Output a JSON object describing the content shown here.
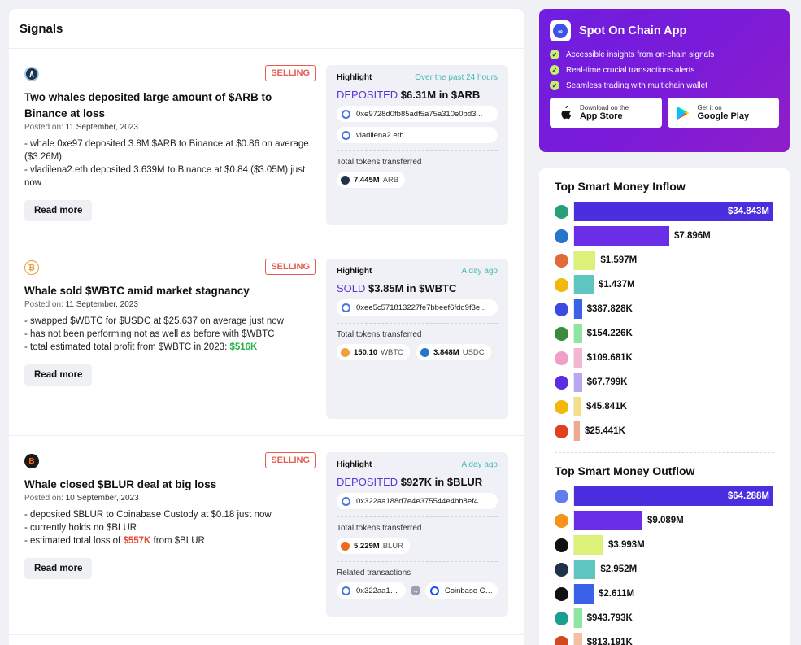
{
  "signals": {
    "header": "Signals",
    "items": [
      {
        "icon": "arb-icon",
        "badge": "SELLING",
        "title": "Two whales deposited large amount of $ARB to Binance at loss",
        "posted_label": "Posted on:",
        "posted_date": "11 September, 2023",
        "desc": [
          "- whale 0xe97 deposited 3.8M $ARB to Binance at $0.86 on average ($3.26M)",
          "- vladilena2.eth deposited 3.639M to Binance at $0.84 ($3.05M) just now"
        ],
        "read_more": "Read more",
        "highlight": {
          "label": "Highlight",
          "time": "Over the past 24 hours",
          "verb": "DEPOSITED",
          "amount": "$6.31M in $ARB",
          "chips": [
            "0xe9728d0fb85adf5a75a310e0bd3...",
            "vladilena2.eth"
          ],
          "tokens_label": "Total tokens transferred",
          "tokens": [
            {
              "amount": "7.445M",
              "symbol": "ARB"
            }
          ]
        }
      },
      {
        "icon": "btc-icon",
        "badge": "SELLING",
        "title": "Whale sold $WBTC amid market stagnancy",
        "posted_label": "Posted on:",
        "posted_date": "11 September, 2023",
        "desc": [
          "- swapped $WBTC for $USDC at $25,637 on average just now",
          "- has not been performing not as well as before with $WBTC"
        ],
        "desc_last_prefix": "- total estimated total profit from $WBTC in 2023: ",
        "desc_last_value": "$516K",
        "read_more": "Read more",
        "highlight": {
          "label": "Highlight",
          "time": "A day ago",
          "verb": "SOLD",
          "amount": "$3.85M in $WBTC",
          "chips": [
            "0xee5c571813227fe7bbeef6fdd9f3e..."
          ],
          "tokens_label": "Total tokens transferred",
          "tokens": [
            {
              "amount": "150.10",
              "symbol": "WBTC"
            },
            {
              "amount": "3.848M",
              "symbol": "USDC"
            }
          ]
        }
      },
      {
        "icon": "blur-icon",
        "badge": "SELLING",
        "title": "Whale closed $BLUR deal at big loss",
        "posted_label": "Posted on:",
        "posted_date": "10 September, 2023",
        "desc": [
          "- deposited $BLUR to Coinabase Custody at $0.18 just now",
          "- currently holds no $BLUR"
        ],
        "desc_last_prefix": "- estimated total loss of ",
        "desc_last_value": "$557K",
        "desc_last_suffix": " from $BLUR",
        "read_more": "Read more",
        "highlight": {
          "label": "Highlight",
          "time": "A day ago",
          "verb": "DEPOSITED",
          "amount": "$927K in $BLUR",
          "chips": [
            "0x322aa188d7e4e375544e4bb8ef4..."
          ],
          "tokens_label": "Total tokens transferred",
          "tokens": [
            {
              "amount": "5.229M",
              "symbol": "BLUR"
            }
          ],
          "related_label": "Related transactions",
          "related_from": "0x322aa188...",
          "related_to": "Coinbase Cu..."
        }
      }
    ]
  },
  "app": {
    "title": "Spot On Chain App",
    "features": [
      "Accessible insights from on-chain signals",
      "Real-time crucial transactions alerts",
      "Seamless trading with multichain wallet"
    ],
    "app_store_small": "Download on the",
    "app_store_big": "App Store",
    "google_small": "Get it on",
    "google_big": "Google Play"
  },
  "inflow": {
    "title": "Top Smart Money Inflow",
    "rows": [
      {
        "icon": "usdt-icon",
        "color": "#26a17b",
        "bar_color": "#4a2ee0",
        "value": 34.843,
        "label": "$34.843M"
      },
      {
        "icon": "usdc-icon",
        "color": "#2775ca",
        "bar_color": "#6a2ee6",
        "value": 7.896,
        "label": "$7.896M"
      },
      {
        "icon": "rainbow-icon",
        "color": "#e06a3a",
        "bar_color": "#dcf07a",
        "value": 1.597,
        "label": "$1.597M"
      },
      {
        "icon": "bnb-icon",
        "color": "#f0b90b",
        "bar_color": "#5ec5c0",
        "value": 1.437,
        "label": "$1.437M"
      },
      {
        "icon": "lido-icon",
        "color": "#3a4ce0",
        "bar_color": "#3a62e8",
        "value": 0.387828,
        "label": "$387.828K"
      },
      {
        "icon": "pepe-icon",
        "color": "#3c8a3c",
        "bar_color": "#8fe6a0",
        "value": 0.154226,
        "label": "$154.226K"
      },
      {
        "icon": "unicorn-icon",
        "color": "#f0a0c8",
        "bar_color": "#f5b7d0",
        "value": 0.109681,
        "label": "$109.681K"
      },
      {
        "icon": "poly-icon",
        "color": "#5a2ee0",
        "bar_color": "#b9a8f0",
        "value": 0.067799,
        "label": "$67.799K"
      },
      {
        "icon": "binance-icon",
        "color": "#f0b90b",
        "bar_color": "#f5e08a",
        "value": 0.045841,
        "label": "$45.841K"
      },
      {
        "icon": "arrow-icon",
        "color": "#e0401e",
        "bar_color": "#f0a890",
        "value": 0.025441,
        "label": "$25.441K"
      }
    ],
    "max": 34.843
  },
  "outflow": {
    "title": "Top Smart Money Outflow",
    "rows": [
      {
        "icon": "eth-icon",
        "color": "#627eea",
        "bar_color": "#4a2ee0",
        "value": 64.288,
        "label": "$64.288M"
      },
      {
        "icon": "btc-icon",
        "color": "#f7931a",
        "bar_color": "#6a2ee6",
        "value": 9.089,
        "label": "$9.089M"
      },
      {
        "icon": "okb-icon",
        "color": "#111111",
        "bar_color": "#dcf07a",
        "value": 3.993,
        "label": "$3.993M"
      },
      {
        "icon": "arb-icon",
        "color": "#213147",
        "bar_color": "#5ec5c0",
        "value": 2.952,
        "label": "$2.952M"
      },
      {
        "icon": "ring-icon",
        "color": "#111111",
        "bar_color": "#3a62e8",
        "value": 2.611,
        "label": "$2.611M"
      },
      {
        "icon": "star-icon",
        "color": "#1aa090",
        "bar_color": "#8fe6a0",
        "value": 0.943793,
        "label": "$943.793K"
      },
      {
        "icon": "coin-icon",
        "color": "#d04a1e",
        "bar_color": "#f5c0a0",
        "value": 0.813191,
        "label": "$813.191K"
      }
    ],
    "max": 64.288
  }
}
